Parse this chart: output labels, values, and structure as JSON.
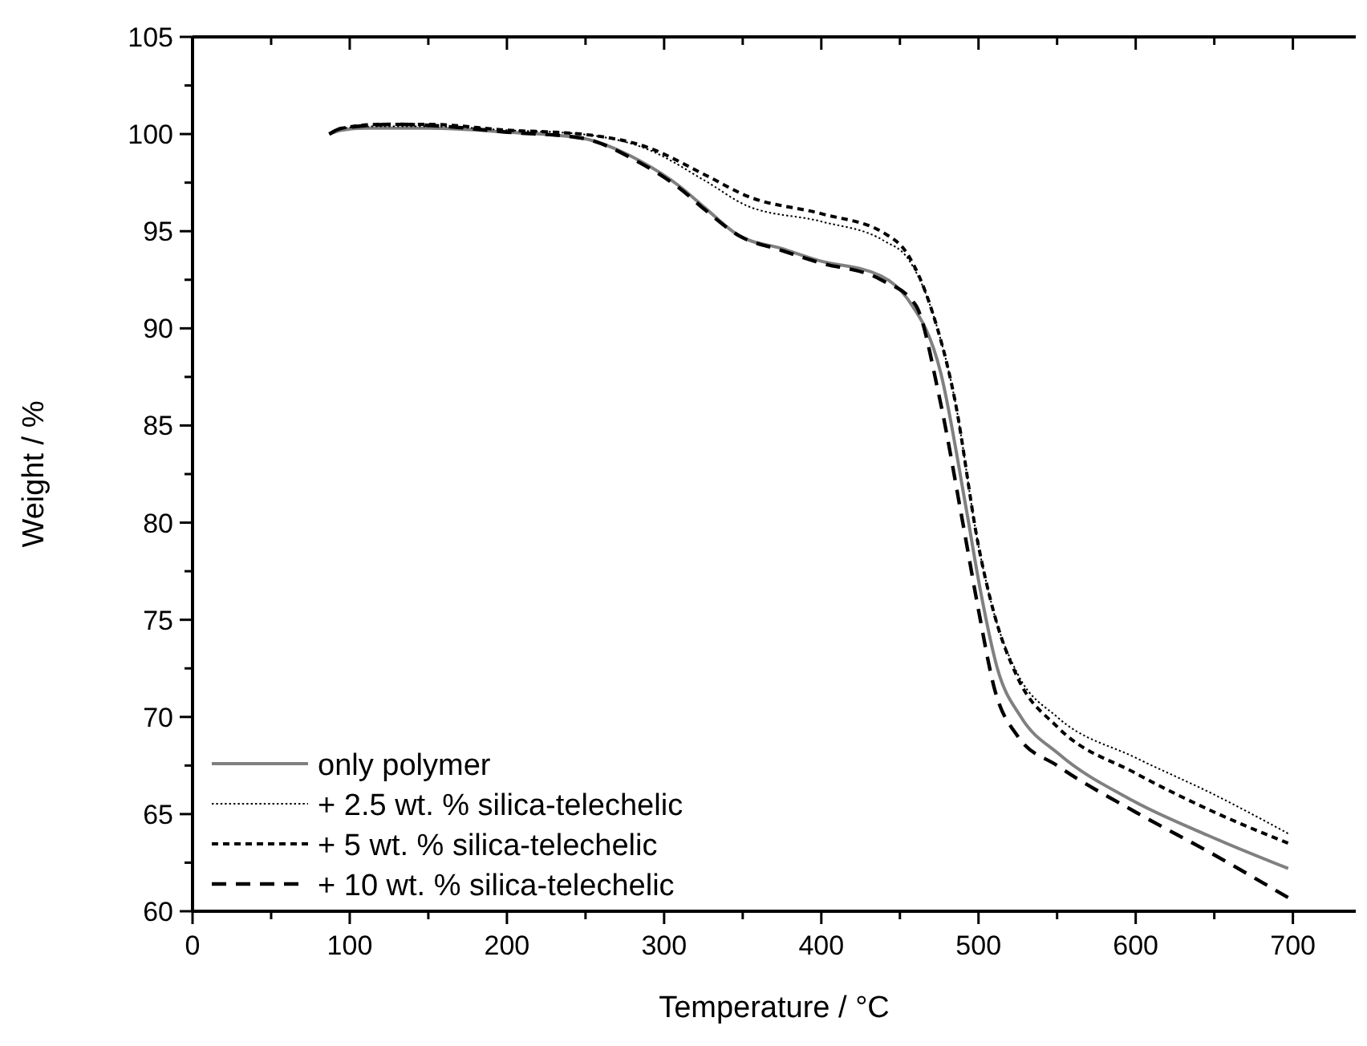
{
  "chart_data": {
    "type": "line",
    "xlabel": "Temperature / °C",
    "ylabel": "Weight / %",
    "xlim": [
      0,
      740
    ],
    "ylim": [
      60,
      105
    ],
    "xticks": [
      0,
      {
        "value": 50,
        "label": null
      },
      100,
      {
        "value": 150,
        "label": null
      },
      200,
      {
        "value": 250,
        "label": null
      },
      300,
      {
        "value": 350,
        "label": null
      },
      400,
      {
        "value": 450,
        "label": null
      },
      500,
      {
        "value": 550,
        "label": null
      },
      600,
      {
        "value": 650,
        "label": null
      },
      700
    ],
    "yticks": [
      60,
      {
        "value": 62.5,
        "label": null
      },
      65,
      {
        "value": 67.5,
        "label": null
      },
      70,
      {
        "value": 72.5,
        "label": null
      },
      75,
      {
        "value": 77.5,
        "label": null
      },
      80,
      {
        "value": 82.5,
        "label": null
      },
      85,
      {
        "value": 87.5,
        "label": null
      },
      90,
      {
        "value": 92.5,
        "label": null
      },
      95,
      {
        "value": 97.5,
        "label": null
      },
      100,
      {
        "value": 102.5,
        "label": null
      },
      105
    ],
    "legend": "bottom left",
    "grid": false,
    "series": [
      {
        "name": "only polymer",
        "color": "#808080",
        "line_style": "solid",
        "x": [
          87,
          95,
          110,
          150,
          200,
          247,
          285,
          310,
          326,
          347,
          375,
          398,
          438,
          455,
          476,
          492,
          501,
          512,
          527,
          551,
          598,
          646,
          697
        ],
        "values": [
          100.0,
          100.2,
          100.3,
          100.3,
          100.1,
          99.8,
          98.6,
          97.3,
          96.2,
          94.8,
          94.1,
          93.5,
          92.7,
          91.5,
          87.7,
          80.8,
          76.6,
          72.5,
          70.0,
          68.1,
          65.7,
          63.9,
          62.2
        ]
      },
      {
        "name": "+ 2.5 wt. % silica-telechelic",
        "color": "#000000",
        "line_style": "dotted",
        "x": [
          87,
          95,
          120,
          150,
          200,
          247,
          290,
          326,
          353,
          400,
          440,
          455,
          470,
          485,
          500,
          510,
          525,
          550,
          600,
          650,
          697
        ],
        "values": [
          100.0,
          100.3,
          100.4,
          100.4,
          100.2,
          100.0,
          99.2,
          97.6,
          96.3,
          95.5,
          94.5,
          93.6,
          91.0,
          86.3,
          78.8,
          75.3,
          72.2,
          70.0,
          67.9,
          66.0,
          64.0
        ]
      },
      {
        "name": "+ 5 wt. % silica-telechelic",
        "color": "#000000",
        "line_style": "dashed",
        "x": [
          87,
          95,
          120,
          150,
          200,
          247,
          290,
          326,
          353,
          400,
          440,
          455,
          470,
          485,
          500,
          510,
          525,
          550,
          600,
          650,
          697
        ],
        "values": [
          100.0,
          100.3,
          100.5,
          100.5,
          100.2,
          100.0,
          99.3,
          97.9,
          96.8,
          95.9,
          94.9,
          93.8,
          91.0,
          86.3,
          78.8,
          75.3,
          72.0,
          69.5,
          67.1,
          65.1,
          63.5
        ]
      },
      {
        "name": "+ 10 wt. % silica-telechelic",
        "color": "#000000",
        "line_style": "longdash",
        "x": [
          87,
          95,
          130,
          160,
          200,
          247,
          285,
          310,
          326,
          347,
          375,
          398,
          438,
          460,
          475,
          490,
          500,
          510,
          525,
          550,
          600,
          650,
          697
        ],
        "values": [
          100.0,
          100.3,
          100.5,
          100.4,
          100.1,
          99.8,
          98.5,
          97.2,
          96.1,
          94.8,
          94.0,
          93.4,
          92.5,
          91.2,
          86.5,
          80.0,
          75.5,
          71.5,
          69.0,
          67.5,
          65.1,
          62.9,
          60.7
        ]
      }
    ]
  }
}
